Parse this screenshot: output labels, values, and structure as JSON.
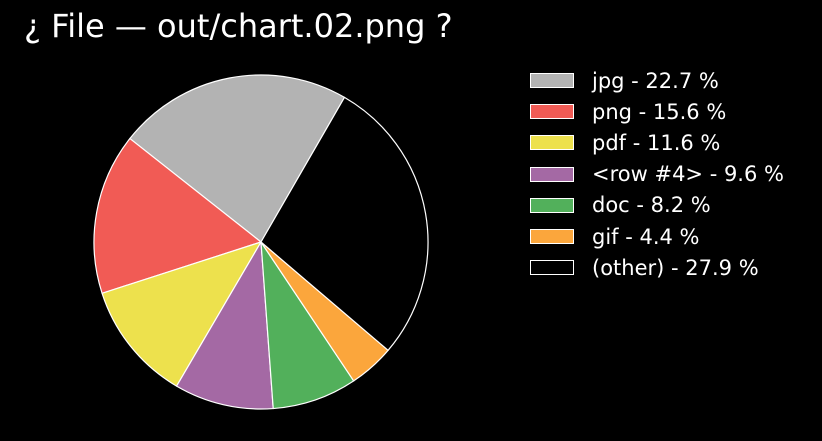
{
  "chart_data": {
    "type": "pie",
    "title": "¿ File — out/chart.02.png ?",
    "start_angle_deg": 60,
    "direction": "counterclockwise",
    "slice_edge_color": "#ffffff",
    "background_color": "#000000",
    "legend_position": "right",
    "slices": [
      {
        "label": "jpg",
        "legend_text": "jpg - 22.7 %",
        "value": 22.7,
        "color": "#b3b3b3"
      },
      {
        "label": "png",
        "legend_text": "png - 15.6 %",
        "value": 15.6,
        "color": "#f15b55"
      },
      {
        "label": "pdf",
        "legend_text": "pdf - 11.6 %",
        "value": 11.6,
        "color": "#ede14d"
      },
      {
        "label": "<row #4>",
        "legend_text": "<row #4> - 9.6 %",
        "value": 9.6,
        "color": "#a469a4"
      },
      {
        "label": "doc",
        "legend_text": "doc - 8.2 %",
        "value": 8.2,
        "color": "#52b05b"
      },
      {
        "label": "gif",
        "legend_text": "gif - 4.4 %",
        "value": 4.4,
        "color": "#fba63c"
      },
      {
        "label": "(other)",
        "legend_text": "(other) - 27.9 %",
        "value": 27.9,
        "color": "#000000"
      }
    ]
  }
}
